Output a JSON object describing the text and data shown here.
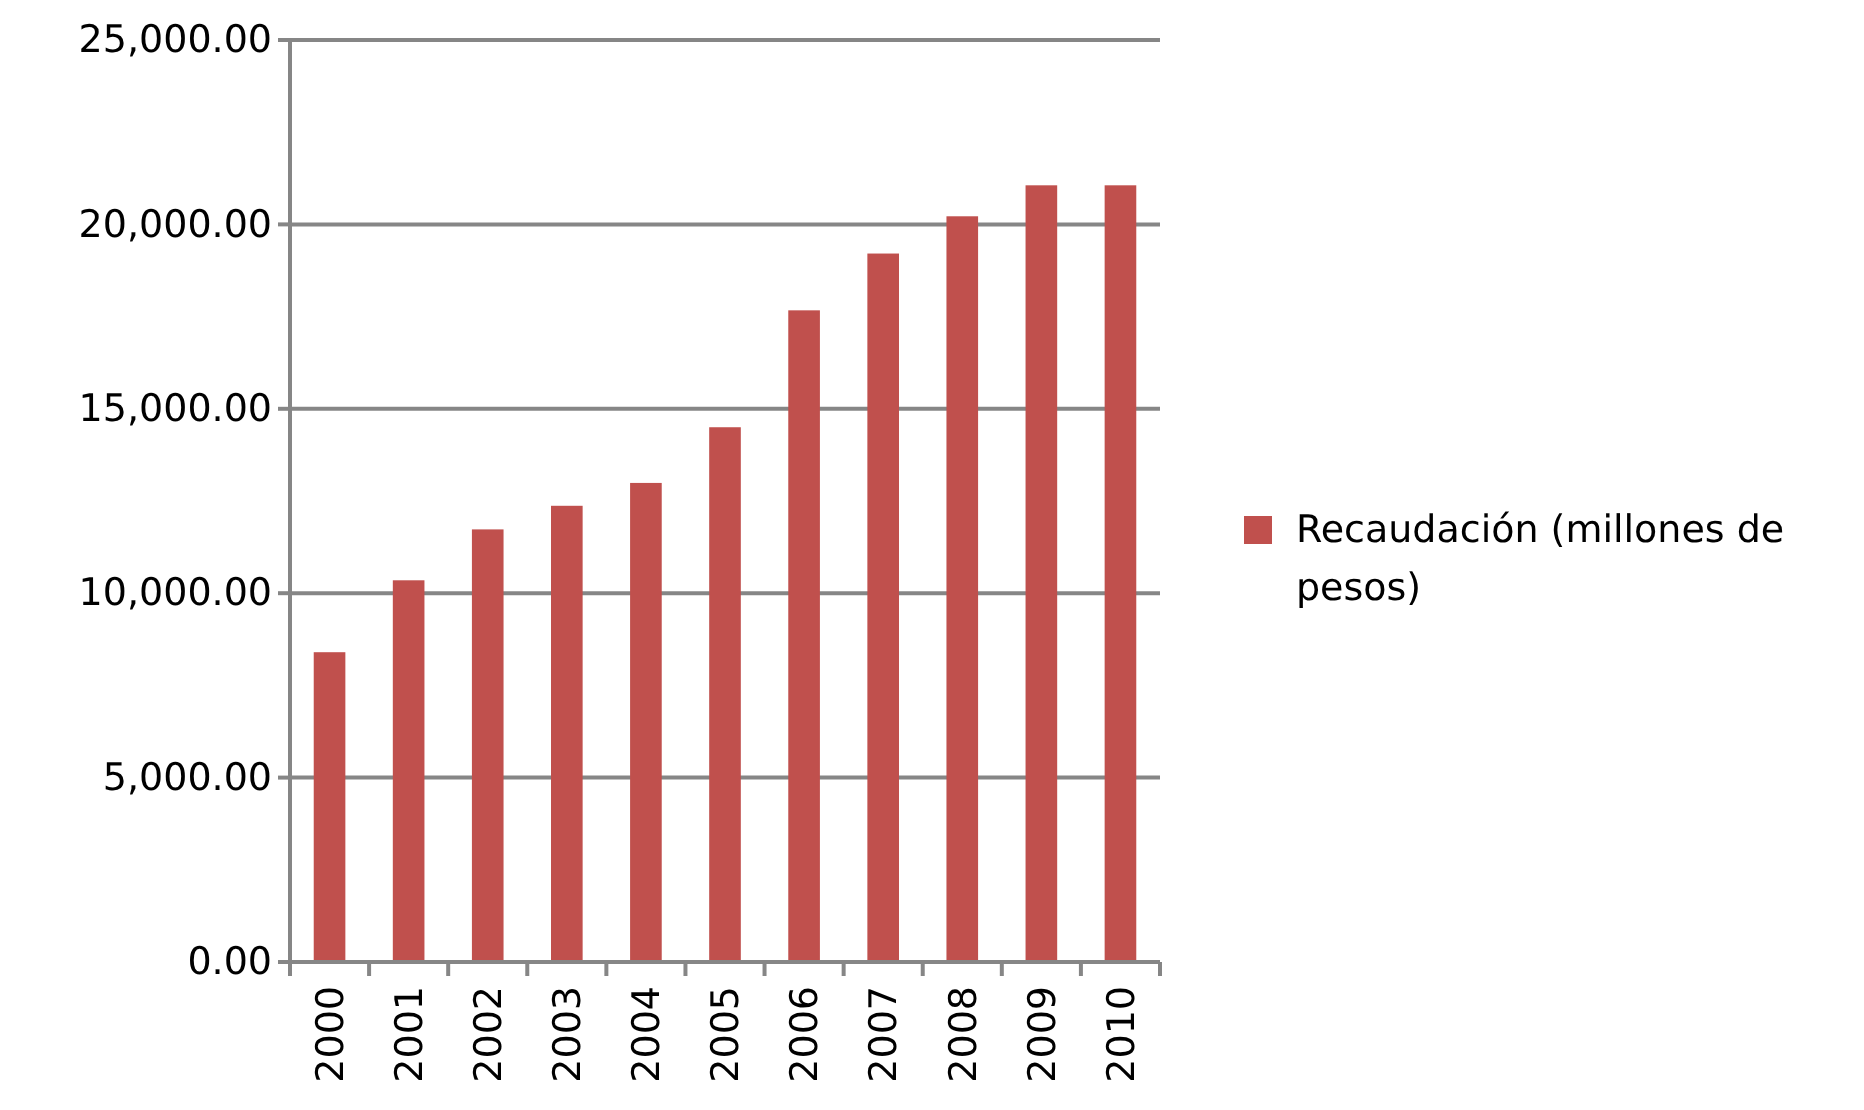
{
  "chart_data": {
    "type": "bar",
    "categories": [
      "2000",
      "2001",
      "2002",
      "2003",
      "2004",
      "2005",
      "2006",
      "2007",
      "2008",
      "2009",
      "2010"
    ],
    "series": [
      {
        "name": "Recaudación (millones de pesos)",
        "color": "#c0504d",
        "values": [
          8400,
          10350,
          11730,
          12370,
          12990,
          14500,
          17670,
          19210,
          20220,
          21060,
          21060
        ]
      }
    ],
    "ylim": [
      0,
      25000
    ],
    "yticks": [
      {
        "value": 0,
        "label": "0.00"
      },
      {
        "value": 5000,
        "label": "5,000.00"
      },
      {
        "value": 10000,
        "label": "10,000.00"
      },
      {
        "value": 15000,
        "label": "15,000.00"
      },
      {
        "value": 20000,
        "label": "20,000.00"
      },
      {
        "value": 25000,
        "label": "25,000.00"
      }
    ],
    "grid": "y",
    "legend": "right"
  }
}
